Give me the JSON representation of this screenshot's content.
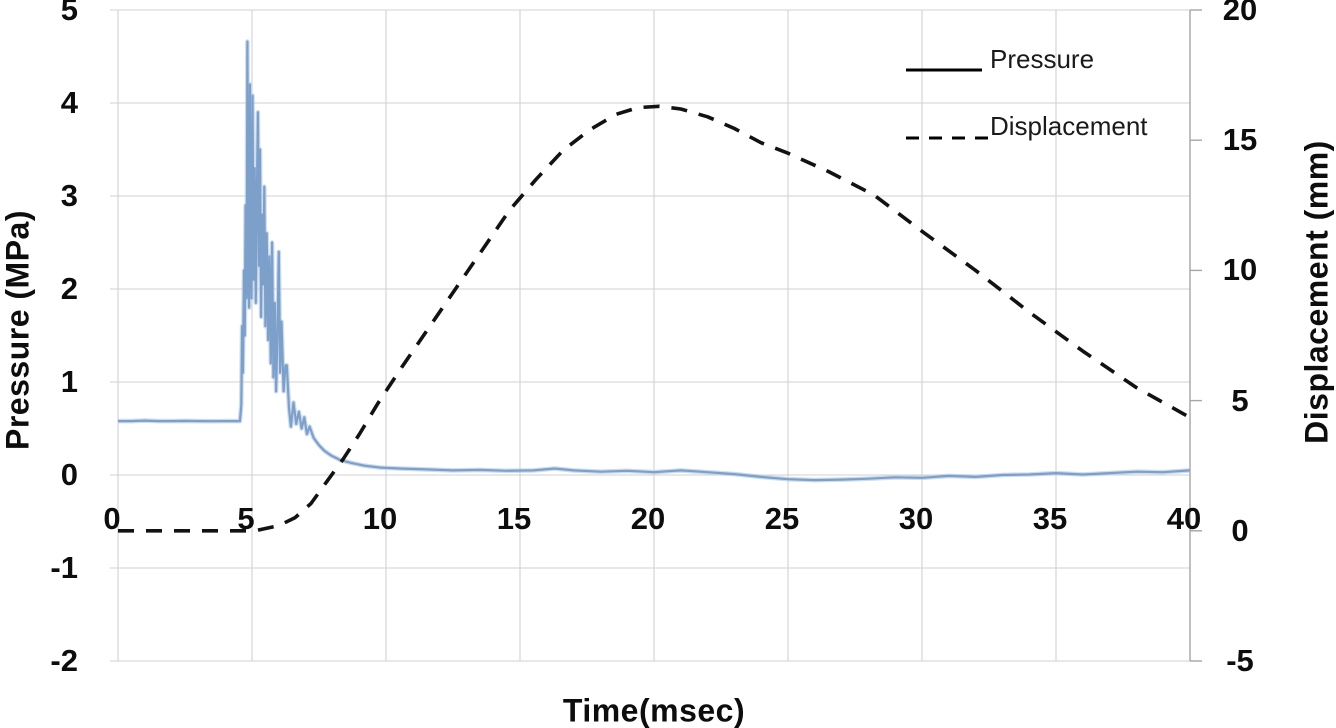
{
  "figure": {
    "background": "#ffffff",
    "legend_position": "top-right"
  },
  "colors": {
    "background": "#ffffff",
    "gridline": "#d2d2d2",
    "axis_line": "#a6a6a6",
    "pressure_line": "#7da0cb",
    "pressure_halo": "#b3c9e2",
    "displacement_line": "#121212",
    "text": "#0d0d0d"
  },
  "chart_data": {
    "type": "line",
    "title": "",
    "xlabel": "Time(msec)",
    "grid": true,
    "legend": [
      "Pressure",
      "Displacement"
    ],
    "x_axis": {
      "min": 0,
      "max": 40,
      "ticks": [
        0,
        5,
        10,
        15,
        20,
        25,
        30,
        35,
        40
      ]
    },
    "left_y_axis": {
      "label": "Pressure (MPa)",
      "min": -2,
      "max": 5,
      "ticks": [
        5,
        4,
        3,
        2,
        1,
        0,
        -1,
        -2
      ]
    },
    "right_y_axis": {
      "label": "Displacement (mm)",
      "min": -5,
      "max": 20,
      "ticks": [
        20,
        15,
        10,
        5,
        0,
        -5
      ]
    },
    "series": [
      {
        "name": "Pressure",
        "axis": "left",
        "style": "solid",
        "units": "MPa",
        "points": [
          [
            0,
            0.58
          ],
          [
            0.5,
            0.58
          ],
          [
            1,
            0.585
          ],
          [
            1.5,
            0.58
          ],
          [
            2,
            0.58
          ],
          [
            2.5,
            0.582
          ],
          [
            3,
            0.58
          ],
          [
            3.5,
            0.578
          ],
          [
            4,
            0.58
          ],
          [
            4.3,
            0.58
          ],
          [
            4.55,
            0.58
          ],
          [
            4.6,
            0.75
          ],
          [
            4.63,
            1.6
          ],
          [
            4.66,
            1.1
          ],
          [
            4.7,
            2.2
          ],
          [
            4.73,
            1.5
          ],
          [
            4.76,
            2.9
          ],
          [
            4.8,
            1.9
          ],
          [
            4.83,
            4.66
          ],
          [
            4.86,
            2.3
          ],
          [
            4.89,
            1.8
          ],
          [
            4.92,
            4.2
          ],
          [
            4.95,
            2.6
          ],
          [
            4.98,
            1.9
          ],
          [
            5.02,
            4.08
          ],
          [
            5.06,
            2.1
          ],
          [
            5.1,
            3.3
          ],
          [
            5.14,
            1.85
          ],
          [
            5.18,
            2.95
          ],
          [
            5.22,
            3.9
          ],
          [
            5.26,
            2.25
          ],
          [
            5.3,
            3.5
          ],
          [
            5.34,
            1.7
          ],
          [
            5.38,
            2.8
          ],
          [
            5.42,
            2.05
          ],
          [
            5.46,
            3.1
          ],
          [
            5.5,
            1.6
          ],
          [
            5.55,
            2.6
          ],
          [
            5.6,
            1.45
          ],
          [
            5.65,
            2.35
          ],
          [
            5.7,
            1.2
          ],
          [
            5.75,
            2.5
          ],
          [
            5.8,
            1.05
          ],
          [
            5.85,
            1.85
          ],
          [
            5.9,
            0.9
          ],
          [
            5.95,
            1.55
          ],
          [
            6,
            2.4
          ],
          [
            6.05,
            1.1
          ],
          [
            6.1,
            1.65
          ],
          [
            6.18,
            0.9
          ],
          [
            6.25,
            1.18
          ],
          [
            6.3,
            1.18
          ],
          [
            6.38,
            0.72
          ],
          [
            6.45,
            0.52
          ],
          [
            6.55,
            0.78
          ],
          [
            6.65,
            0.55
          ],
          [
            6.75,
            0.68
          ],
          [
            6.85,
            0.5
          ],
          [
            6.95,
            0.62
          ],
          [
            7.05,
            0.44
          ],
          [
            7.15,
            0.52
          ],
          [
            7.3,
            0.4
          ],
          [
            7.5,
            0.32
          ],
          [
            7.7,
            0.26
          ],
          [
            7.95,
            0.21
          ],
          [
            8.3,
            0.16
          ],
          [
            8.7,
            0.13
          ],
          [
            9.2,
            0.1
          ],
          [
            9.8,
            0.08
          ],
          [
            10.5,
            0.07
          ],
          [
            11.5,
            0.06
          ],
          [
            12.5,
            0.05
          ],
          [
            13.5,
            0.055
          ],
          [
            14.5,
            0.045
          ],
          [
            15.5,
            0.05
          ],
          [
            16.3,
            0.07
          ],
          [
            17,
            0.05
          ],
          [
            18,
            0.035
          ],
          [
            19,
            0.045
          ],
          [
            20,
            0.03
          ],
          [
            21,
            0.05
          ],
          [
            22,
            0.03
          ],
          [
            23,
            0.01
          ],
          [
            24,
            -0.02
          ],
          [
            25,
            -0.045
          ],
          [
            26,
            -0.055
          ],
          [
            27,
            -0.05
          ],
          [
            28,
            -0.04
          ],
          [
            29,
            -0.025
          ],
          [
            30,
            -0.03
          ],
          [
            31,
            -0.01
          ],
          [
            32,
            -0.02
          ],
          [
            33,
            0
          ],
          [
            34,
            0.005
          ],
          [
            35,
            0.02
          ],
          [
            36,
            0.005
          ],
          [
            37,
            0.02
          ],
          [
            38,
            0.035
          ],
          [
            39,
            0.03
          ],
          [
            40,
            0.05
          ]
        ]
      },
      {
        "name": "Displacement",
        "axis": "right",
        "style": "dashed",
        "units": "mm",
        "points": [
          [
            0,
            0
          ],
          [
            0.8,
            0
          ],
          [
            1.6,
            0
          ],
          [
            2.4,
            0
          ],
          [
            3.2,
            0
          ],
          [
            4,
            0
          ],
          [
            4.8,
            0
          ],
          [
            5.2,
            0.02
          ],
          [
            6,
            0.2
          ],
          [
            6.6,
            0.5
          ],
          [
            7.2,
            1.05
          ],
          [
            7.8,
            1.9
          ],
          [
            8.4,
            2.75
          ],
          [
            9,
            3.7
          ],
          [
            9.7,
            4.9
          ],
          [
            10.6,
            6.3
          ],
          [
            11.6,
            7.8
          ],
          [
            12.6,
            9.3
          ],
          [
            13.6,
            10.8
          ],
          [
            14.6,
            12.3
          ],
          [
            15.6,
            13.5
          ],
          [
            16.6,
            14.6
          ],
          [
            17.6,
            15.4
          ],
          [
            18.6,
            16.0
          ],
          [
            19.4,
            16.25
          ],
          [
            20.2,
            16.3
          ],
          [
            21,
            16.2
          ],
          [
            22,
            15.9
          ],
          [
            23,
            15.45
          ],
          [
            24,
            14.9
          ],
          [
            25,
            14.5
          ],
          [
            26.5,
            13.8
          ],
          [
            28.2,
            12.9
          ],
          [
            30,
            11.5
          ],
          [
            32,
            10.0
          ],
          [
            34,
            8.4
          ],
          [
            36,
            6.9
          ],
          [
            38,
            5.5
          ],
          [
            40,
            4.35
          ]
        ]
      }
    ]
  }
}
